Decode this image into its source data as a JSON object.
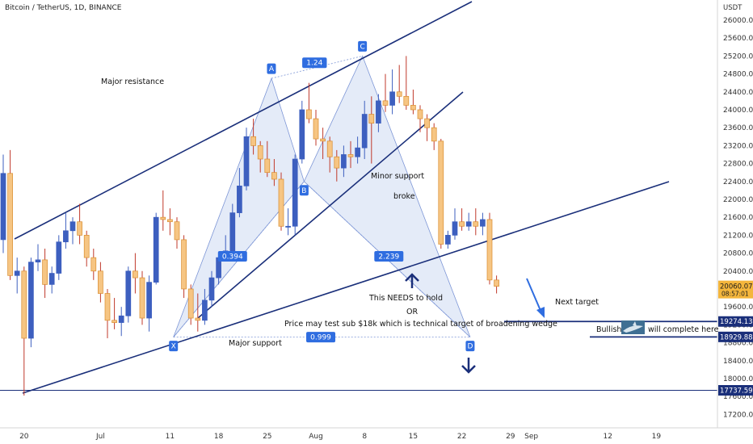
{
  "header": {
    "title": "Bitcoin / TetherUS, 1D, BINANCE",
    "currency": "USDT"
  },
  "colors": {
    "bull_body": "#3d5fbf",
    "bear_body": "#f6c583",
    "bear_border": "#d98c2e",
    "wick_bull": "#3d5fbf",
    "wick_bear": "#c0392b",
    "trendline": "#1a2f7a",
    "pattern_fill": "#dfe7f7",
    "pattern_stroke": "#7d96d6",
    "label_bg": "#2f6de0",
    "price_box": "#f4b63c",
    "level_box": "#1a2f7a"
  },
  "chart_data": {
    "type": "candlestick",
    "title": "Bitcoin / TetherUS, 1D, BINANCE",
    "yunit": "USDT",
    "ylim": [
      16900,
      26450
    ],
    "yticks": [
      17200,
      17600,
      18000,
      18400,
      18800,
      19200,
      19600,
      20000,
      20400,
      20800,
      21200,
      21600,
      22000,
      22400,
      22800,
      23200,
      23600,
      24000,
      24400,
      24800,
      25200,
      25600,
      26000
    ],
    "xticks": [
      {
        "label": "20",
        "i": 3
      },
      {
        "label": "Jul",
        "i": 14
      },
      {
        "label": "11",
        "i": 24
      },
      {
        "label": "18",
        "i": 31
      },
      {
        "label": "25",
        "i": 38
      },
      {
        "label": "Aug",
        "i": 45
      },
      {
        "label": "8",
        "i": 52
      },
      {
        "label": "15",
        "i": 59
      },
      {
        "label": "22",
        "i": 66
      },
      {
        "label": "29",
        "i": 73
      },
      {
        "label": "Sep",
        "i": 76
      },
      {
        "label": "12",
        "i": 87
      },
      {
        "label": "19",
        "i": 94
      }
    ],
    "candles": [
      [
        21100,
        22580,
        23000,
        20800
      ],
      [
        22580,
        20300,
        23100,
        20200
      ],
      [
        20300,
        20400,
        20700,
        19900
      ],
      [
        20400,
        18900,
        20500,
        17620
      ],
      [
        18900,
        20600,
        20700,
        18700
      ],
      [
        20600,
        20650,
        21000,
        20400
      ],
      [
        20650,
        20100,
        20900,
        19800
      ],
      [
        20100,
        20350,
        20500,
        19900
      ],
      [
        20350,
        21050,
        21200,
        20200
      ],
      [
        21050,
        21300,
        21700,
        20900
      ],
      [
        21300,
        21500,
        21600,
        21000
      ],
      [
        21500,
        21200,
        21900,
        21000
      ],
      [
        21200,
        20700,
        21300,
        20500
      ],
      [
        20700,
        20400,
        20900,
        20200
      ],
      [
        20400,
        19900,
        20600,
        19700
      ],
      [
        19900,
        19300,
        20000,
        18900
      ],
      [
        19300,
        19250,
        19800,
        19100
      ],
      [
        19250,
        19400,
        19600,
        18950
      ],
      [
        19400,
        20400,
        20500,
        19250
      ],
      [
        20400,
        20250,
        20800,
        19900
      ],
      [
        20250,
        19350,
        20400,
        19200
      ],
      [
        19350,
        20150,
        20300,
        19050
      ],
      [
        20150,
        21600,
        21700,
        20100
      ],
      [
        21600,
        21550,
        22200,
        21300
      ],
      [
        21550,
        21500,
        21800,
        21200
      ],
      [
        21500,
        21100,
        21600,
        20900
      ],
      [
        21100,
        20000,
        21200,
        19800
      ],
      [
        20000,
        19350,
        20100,
        19200
      ],
      [
        19350,
        19300,
        19900,
        19050
      ],
      [
        19300,
        19750,
        20000,
        19200
      ],
      [
        19750,
        20250,
        20400,
        19600
      ],
      [
        20250,
        20700,
        20800,
        20100
      ],
      [
        20700,
        20850,
        21200,
        20700
      ],
      [
        20850,
        21700,
        21900,
        20700
      ],
      [
        21700,
        22300,
        22700,
        21600
      ],
      [
        22300,
        23400,
        23600,
        22200
      ],
      [
        23400,
        23200,
        23800,
        23000
      ],
      [
        23200,
        22900,
        23300,
        22600
      ],
      [
        22900,
        22600,
        23300,
        22500
      ],
      [
        22600,
        22450,
        22900,
        22300
      ],
      [
        22450,
        21400,
        22600,
        21300
      ],
      [
        21400,
        21400,
        21800,
        21200
      ],
      [
        21400,
        22900,
        23000,
        21200
      ],
      [
        22900,
        24000,
        24200,
        22800
      ],
      [
        24000,
        23800,
        24600,
        23700
      ],
      [
        23800,
        23350,
        24000,
        23200
      ],
      [
        23350,
        23300,
        23600,
        22900
      ],
      [
        23300,
        22950,
        23400,
        22600
      ],
      [
        22950,
        22700,
        23100,
        22400
      ],
      [
        22700,
        23000,
        23200,
        22500
      ],
      [
        23000,
        22950,
        23300,
        22700
      ],
      [
        22950,
        23150,
        23400,
        22800
      ],
      [
        23150,
        23900,
        24200,
        22900
      ],
      [
        23900,
        23700,
        24300,
        22800
      ],
      [
        23700,
        24200,
        24350,
        23500
      ],
      [
        24200,
        24100,
        24800,
        23950
      ],
      [
        24100,
        24400,
        24900,
        23900
      ],
      [
        24400,
        24300,
        25000,
        24150
      ],
      [
        24300,
        24100,
        25200,
        24000
      ],
      [
        24100,
        24000,
        24450,
        23900
      ],
      [
        24000,
        23800,
        24100,
        23500
      ],
      [
        23800,
        23600,
        23900,
        23300
      ],
      [
        23600,
        23300,
        23700,
        23100
      ],
      [
        23300,
        21000,
        23350,
        20900
      ],
      [
        21000,
        21200,
        21300,
        20900
      ],
      [
        21200,
        21500,
        21800,
        21100
      ],
      [
        21500,
        21400,
        21800,
        21300
      ],
      [
        21400,
        21500,
        21700,
        21300
      ],
      [
        21500,
        21400,
        21800,
        21200
      ],
      [
        21400,
        21550,
        21700,
        21200
      ],
      [
        21550,
        20200,
        21700,
        20100
      ],
      [
        20200,
        20060,
        20300,
        19900
      ]
    ]
  },
  "price_levels": {
    "current": {
      "value": "20060.07",
      "sub": "08:57:01",
      "price": 20060
    },
    "levels": [
      {
        "value": "19274.13",
        "price": 19274
      },
      {
        "value": "18929.88",
        "price": 18930
      },
      {
        "value": "17737.59",
        "price": 17738
      }
    ]
  },
  "pattern_points": [
    {
      "label": "X",
      "i": 24.5,
      "price": 18925
    },
    {
      "label": "A",
      "i": 38.6,
      "price": 24700
    },
    {
      "label": "B",
      "i": 43.3,
      "price": 22400
    },
    {
      "label": "C",
      "i": 51.7,
      "price": 25200
    },
    {
      "label": "D",
      "i": 67.2,
      "price": 18925
    }
  ],
  "ratio_labels": [
    {
      "label": "1.24",
      "i": 44.8,
      "price": 25050
    },
    {
      "label": "0.394",
      "i": 33.0,
      "price": 20730
    },
    {
      "label": "2.239",
      "i": 55.5,
      "price": 20730
    },
    {
      "label": "0.999",
      "i": 45.7,
      "price": 18925
    }
  ],
  "annotations": {
    "major_resistance": "Major resistance",
    "minor_support": "Minor support",
    "broke": "broke",
    "needs_hold": "This NEEDS to hold",
    "or": "OR",
    "price_may_test": "Price may test sub $18k which is technical target of broadening wedge",
    "major_support": "Major support",
    "next_target": "Next target",
    "bullish": "Bullish",
    "will_complete": "will complete here"
  }
}
